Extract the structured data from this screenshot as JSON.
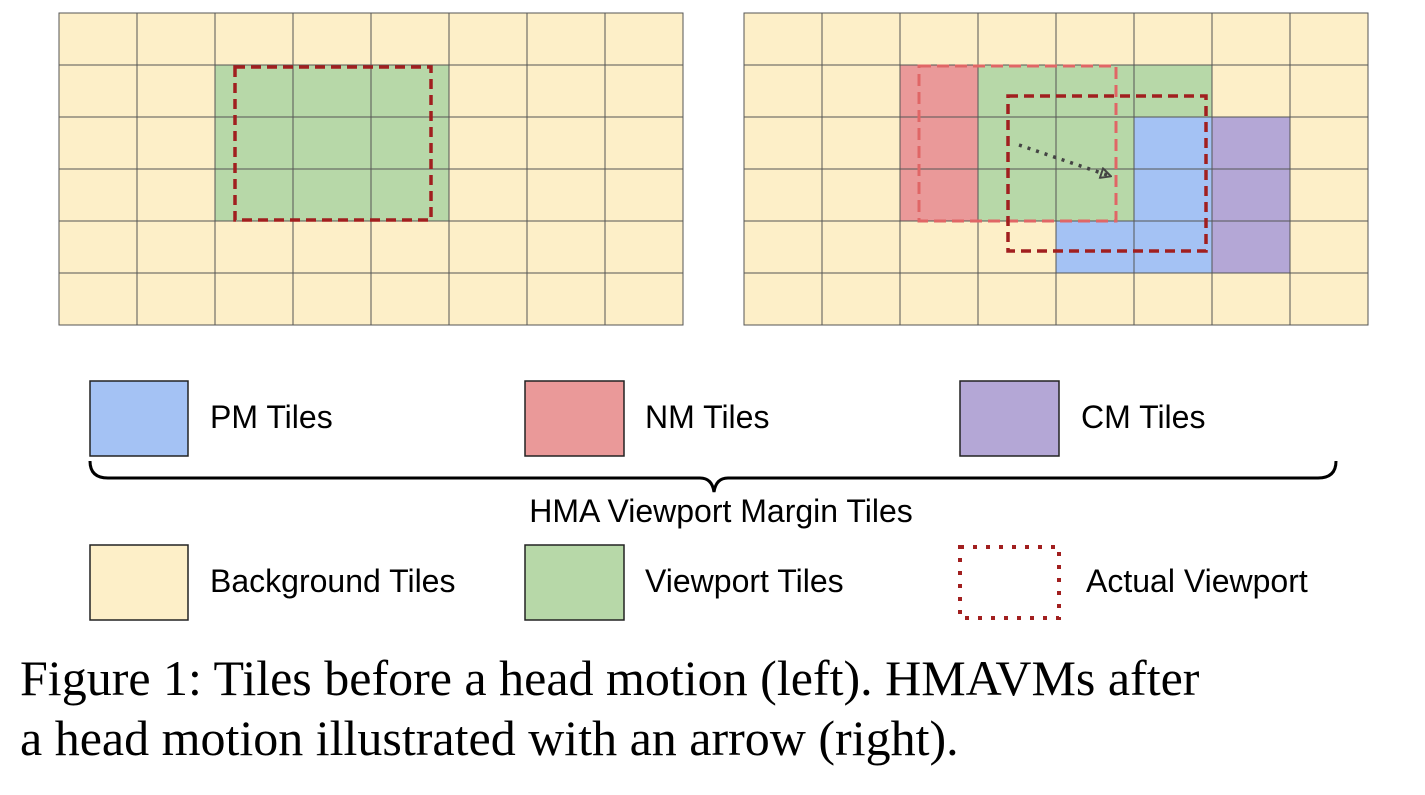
{
  "colors": {
    "background_tile": "#fdefc8",
    "viewport_tile": "#b7d8a8",
    "pm_tile": "#a4c2f4",
    "nm_tile": "#ea9999",
    "cm_tile": "#b4a7d6",
    "grid_line": "#555555",
    "actual_viewport": "#a11f1f",
    "arrow": "#444444"
  },
  "grids": {
    "rows": 6,
    "cols": 8,
    "left": {
      "viewport_tiles": [
        [
          1,
          2
        ],
        [
          1,
          3
        ],
        [
          1,
          4
        ],
        [
          2,
          2
        ],
        [
          2,
          3
        ],
        [
          2,
          4
        ],
        [
          3,
          2
        ],
        [
          3,
          3
        ],
        [
          3,
          4
        ]
      ]
    },
    "right": {
      "viewport_tiles": [
        [
          1,
          3
        ],
        [
          1,
          4
        ],
        [
          1,
          5
        ],
        [
          2,
          3
        ],
        [
          2,
          4
        ],
        [
          2,
          5
        ],
        [
          3,
          3
        ],
        [
          3,
          4
        ],
        [
          3,
          5
        ]
      ],
      "nm_tiles": [
        [
          1,
          2
        ],
        [
          2,
          2
        ],
        [
          3,
          2
        ]
      ],
      "pm_tiles": [
        [
          2,
          5
        ],
        [
          3,
          5
        ],
        [
          4,
          4
        ],
        [
          4,
          5
        ]
      ],
      "cm_tiles": [
        [
          2,
          6
        ],
        [
          3,
          6
        ],
        [
          4,
          6
        ]
      ],
      "has_motion_arrow": true
    }
  },
  "legend": {
    "pm": "PM Tiles",
    "nm": "NM Tiles",
    "cm": "CM Tiles",
    "margin_group": "HMA Viewport Margin Tiles",
    "background": "Background Tiles",
    "viewport": "Viewport Tiles",
    "actual": "Actual Viewport"
  },
  "caption": {
    "line1": "Figure 1: Tiles before a head motion (left). HMAVMs after",
    "line2": "a head motion illustrated with an arrow (right)."
  }
}
